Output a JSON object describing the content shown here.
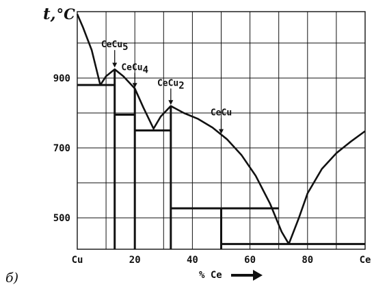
{
  "figure": {
    "panel_label": "б)",
    "y_axis_title": "t,",
    "y_axis_unit": "°C",
    "x_axis_title": "% Ce"
  },
  "axes": {
    "x_min": 0,
    "x_max": 100,
    "y_min": 410,
    "y_max": 1090,
    "x_ticks": [
      {
        "value": 0,
        "label": "Cu"
      },
      {
        "value": 20,
        "label": "20"
      },
      {
        "value": 40,
        "label": "40"
      },
      {
        "value": 60,
        "label": "60"
      },
      {
        "value": 80,
        "label": "80"
      },
      {
        "value": 100,
        "label": "Ce"
      }
    ],
    "y_ticks": [
      {
        "value": 500,
        "label": "500"
      },
      {
        "value": 700,
        "label": "700"
      },
      {
        "value": 900,
        "label": "900"
      }
    ],
    "grid_x": [
      10,
      20,
      30,
      40,
      50,
      60,
      70,
      80,
      90
    ],
    "grid_y": [
      500,
      600,
      700,
      800,
      900,
      1000
    ],
    "grid": true
  },
  "phase_diagram": {
    "liquidus": [
      {
        "x": 0,
        "t": 1083
      },
      {
        "x": 2,
        "t": 1045
      },
      {
        "x": 5,
        "t": 980
      },
      {
        "x": 8,
        "t": 880
      },
      {
        "x": 10,
        "t": 905
      },
      {
        "x": 13,
        "t": 925
      },
      {
        "x": 16,
        "t": 905
      },
      {
        "x": 20,
        "t": 870
      },
      {
        "x": 23,
        "t": 815
      },
      {
        "x": 26.5,
        "t": 755
      },
      {
        "x": 29,
        "t": 790
      },
      {
        "x": 32.5,
        "t": 820
      },
      {
        "x": 37,
        "t": 800
      },
      {
        "x": 42,
        "t": 783
      },
      {
        "x": 47,
        "t": 758
      },
      {
        "x": 52,
        "t": 725
      },
      {
        "x": 57,
        "t": 680
      },
      {
        "x": 62,
        "t": 620
      },
      {
        "x": 67,
        "t": 540
      },
      {
        "x": 71,
        "t": 460
      },
      {
        "x": 73.5,
        "t": 425
      },
      {
        "x": 77,
        "t": 500
      },
      {
        "x": 80,
        "t": 570
      },
      {
        "x": 85,
        "t": 640
      },
      {
        "x": 90,
        "t": 685
      },
      {
        "x": 95,
        "t": 718
      },
      {
        "x": 100,
        "t": 748
      }
    ],
    "eutectics": [
      {
        "t": 880,
        "x_from": 0,
        "x_to": 13
      },
      {
        "t": 795,
        "x_from": 13,
        "x_to": 20
      },
      {
        "t": 750,
        "x_from": 20,
        "x_to": 32.5
      },
      {
        "t": 527,
        "x_from": 32.5,
        "x_to": 70
      },
      {
        "t": 425,
        "x_from": 50,
        "x_to": 100
      }
    ],
    "compounds": [
      {
        "name": "CeCu5",
        "label_base": "CeCu",
        "label_sub": "5",
        "x": 13,
        "t_top": 925,
        "arrow_t_from": 980,
        "arrow_t_to": 930
      },
      {
        "name": "CeCu4",
        "label_base": "CeCu",
        "label_sub": "4",
        "x": 20,
        "t_top": 870,
        "arrow_t_from": 915,
        "arrow_t_to": 872
      },
      {
        "name": "CeCu2",
        "label_base": "CeCu",
        "label_sub": "2",
        "x": 32.5,
        "t_top": 820,
        "arrow_t_from": 870,
        "arrow_t_to": 823
      },
      {
        "name": "CeCu",
        "label_base": "CeCu",
        "label_sub": "",
        "x": 50,
        "t_top": 527,
        "arrow_t_from": 785,
        "arrow_t_to": 740
      }
    ]
  },
  "colors": {
    "line": "#111111",
    "grid": "#111111",
    "background": "#ffffff"
  }
}
